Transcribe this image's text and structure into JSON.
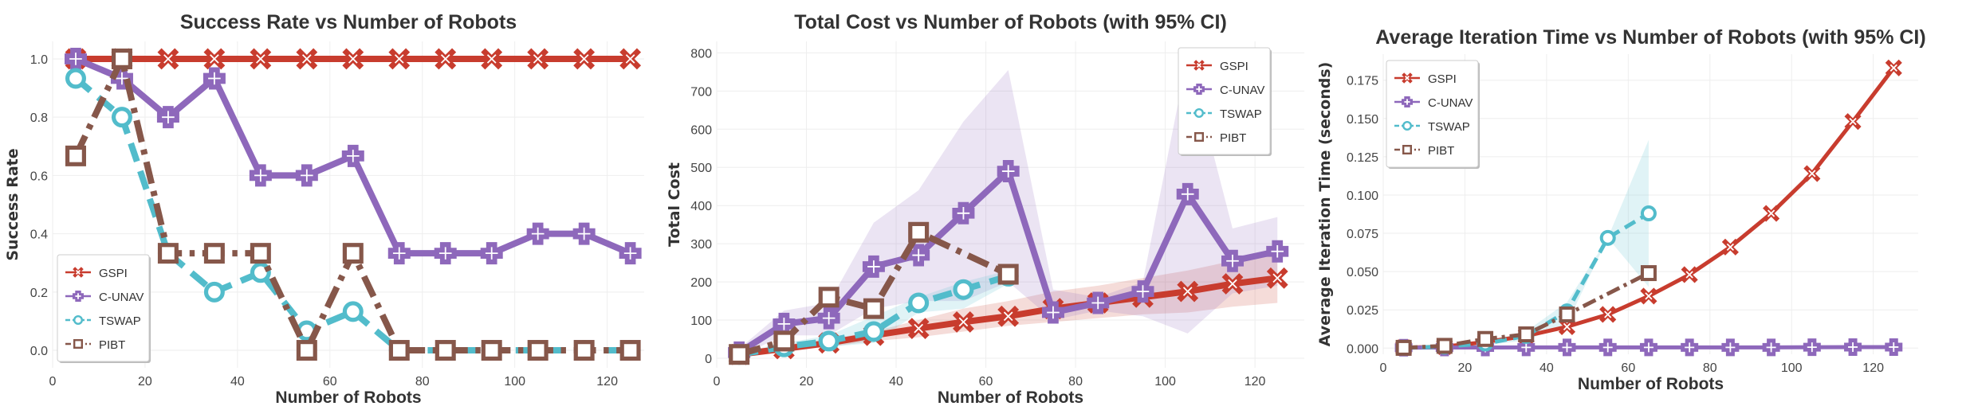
{
  "colors": {
    "GSPI": "#c83c2e",
    "C-UNAV": "#8e68bb",
    "TSWAP": "#52bccb",
    "PIBT": "#86574a"
  },
  "chart_data": [
    {
      "type": "line",
      "title": "Success Rate vs Number of Robots",
      "xlabel": "Number of Robots",
      "ylabel": "Success Rate",
      "xlim": [
        0,
        128
      ],
      "ylim": [
        -0.06,
        1.06
      ],
      "xticks": [
        0,
        20,
        40,
        60,
        80,
        100,
        120
      ],
      "yticks": [
        0.0,
        0.2,
        0.4,
        0.6,
        0.8,
        1.0
      ],
      "ytick_labels": [
        "0.0",
        "0.2",
        "0.4",
        "0.6",
        "0.8",
        "1.0"
      ],
      "grid": true,
      "legend": "lower-left",
      "series": [
        {
          "name": "GSPI",
          "marker": "x",
          "line": "solid",
          "x": [
            5,
            15,
            25,
            35,
            45,
            55,
            65,
            75,
            85,
            95,
            105,
            115,
            125
          ],
          "y": [
            1,
            1,
            1,
            1,
            1,
            1,
            1,
            1,
            1,
            1,
            1,
            1,
            1
          ]
        },
        {
          "name": "C-UNAV",
          "marker": "plus",
          "line": "solid",
          "x": [
            5,
            15,
            25,
            35,
            45,
            55,
            65,
            75,
            85,
            95,
            105,
            115,
            125
          ],
          "y": [
            1.0,
            0.933,
            0.8,
            0.933,
            0.6,
            0.6,
            0.667,
            0.333,
            0.333,
            0.333,
            0.4,
            0.4,
            0.333
          ]
        },
        {
          "name": "TSWAP",
          "marker": "circle",
          "line": "dashed",
          "x": [
            5,
            15,
            25,
            35,
            45,
            55,
            65,
            75,
            85,
            95,
            105,
            115,
            125
          ],
          "y": [
            0.933,
            0.8,
            0.333,
            0.2,
            0.267,
            0.067,
            0.133,
            0,
            0,
            0,
            0,
            0,
            0
          ]
        },
        {
          "name": "PIBT",
          "marker": "square",
          "line": "dashdot",
          "x": [
            5,
            15,
            25,
            35,
            45,
            55,
            65,
            75,
            85,
            95,
            105,
            115,
            125
          ],
          "y": [
            0.667,
            1.0,
            0.333,
            0.333,
            0.333,
            0,
            0.333,
            0,
            0,
            0,
            0,
            0,
            0
          ]
        }
      ]
    },
    {
      "type": "line",
      "title": "Total Cost vs Number of Robots (with 95% CI)",
      "xlabel": "Number of Robots",
      "ylabel": "Total Cost",
      "xlim": [
        0,
        131
      ],
      "ylim": [
        -25,
        830
      ],
      "xticks": [
        0,
        20,
        40,
        60,
        80,
        100,
        120
      ],
      "yticks": [
        0,
        100,
        200,
        300,
        400,
        500,
        600,
        700,
        800
      ],
      "ytick_labels": [
        "0",
        "100",
        "200",
        "300",
        "400",
        "500",
        "600",
        "700",
        "800"
      ],
      "grid": true,
      "legend": "upper-right",
      "series": [
        {
          "name": "GSPI",
          "marker": "x",
          "line": "solid",
          "x": [
            5,
            15,
            25,
            35,
            45,
            55,
            65,
            75,
            85,
            95,
            105,
            115,
            125
          ],
          "y": [
            10,
            25,
            40,
            60,
            78,
            95,
            110,
            130,
            145,
            160,
            175,
            195,
            210
          ],
          "ci_low": [
            5,
            18,
            30,
            45,
            55,
            70,
            85,
            95,
            105,
            115,
            120,
            135,
            145
          ],
          "ci_high": [
            15,
            35,
            50,
            70,
            100,
            130,
            150,
            175,
            190,
            210,
            230,
            255,
            275
          ]
        },
        {
          "name": "C-UNAV",
          "marker": "plus",
          "line": "solid",
          "x": [
            5,
            15,
            25,
            35,
            45,
            55,
            65,
            75,
            85,
            95,
            105,
            115,
            125
          ],
          "y": [
            15,
            90,
            105,
            240,
            270,
            380,
            490,
            120,
            145,
            175,
            430,
            255,
            280
          ],
          "ci_low": [
            5,
            60,
            60,
            130,
            150,
            150,
            200,
            100,
            125,
            110,
            65,
            170,
            190
          ],
          "ci_high": [
            25,
            125,
            145,
            355,
            440,
            620,
            755,
            180,
            160,
            200,
            795,
            340,
            370
          ]
        },
        {
          "name": "TSWAP",
          "marker": "circle",
          "line": "dashed",
          "x": [
            5,
            15,
            25,
            35,
            45,
            55,
            65
          ],
          "y": [
            10,
            30,
            45,
            70,
            145,
            180,
            215
          ],
          "ci_low": [
            5,
            22,
            30,
            40,
            120,
            130,
            195
          ],
          "ci_high": [
            15,
            40,
            60,
            110,
            160,
            200,
            230
          ]
        },
        {
          "name": "PIBT",
          "marker": "square",
          "line": "dashdot",
          "x": [
            5,
            15,
            25,
            35,
            45,
            65
          ],
          "y": [
            10,
            45,
            160,
            130,
            330,
            220
          ]
        }
      ]
    },
    {
      "type": "line",
      "title": "Average Iteration Time vs Number of Robots (with 95% CI)",
      "xlabel": "Number of Robots",
      "ylabel": "Average Iteration Time (seconds)",
      "xlim": [
        0,
        131
      ],
      "ylim": [
        -0.004,
        0.192
      ],
      "xticks": [
        0,
        20,
        40,
        60,
        80,
        100,
        120
      ],
      "yticks": [
        0,
        0.025,
        0.05,
        0.075,
        0.1,
        0.125,
        0.15,
        0.175
      ],
      "ytick_labels": [
        "0.000",
        "0.025",
        "0.050",
        "0.075",
        "0.100",
        "0.125",
        "0.150",
        "0.175"
      ],
      "grid": true,
      "legend": "upper-left",
      "series": [
        {
          "name": "GSPI",
          "marker": "x",
          "line": "solid",
          "x": [
            5,
            15,
            25,
            35,
            45,
            55,
            65,
            75,
            85,
            95,
            105,
            115,
            125
          ],
          "y": [
            0.0003,
            0.001,
            0.004,
            0.008,
            0.014,
            0.022,
            0.034,
            0.048,
            0.066,
            0.088,
            0.114,
            0.148,
            0.183
          ]
        },
        {
          "name": "C-UNAV",
          "marker": "plus",
          "line": "solid",
          "x": [
            5,
            15,
            25,
            35,
            45,
            55,
            65,
            75,
            85,
            95,
            105,
            115,
            125
          ],
          "y": [
            0.0003,
            0.0004,
            0.0004,
            0.0005,
            0.0005,
            0.0005,
            0.0005,
            0.0005,
            0.0005,
            0.0005,
            0.0006,
            0.0007,
            0.0007
          ]
        },
        {
          "name": "TSWAP",
          "marker": "circle",
          "line": "dashed",
          "x": [
            5,
            15,
            25,
            35,
            45,
            55,
            65
          ],
          "y": [
            0.0002,
            0.001,
            0.003,
            0.008,
            0.024,
            0.072,
            0.088
          ],
          "ci_low": [
            0,
            0.0005,
            0.002,
            0.005,
            0.016,
            0.072,
            0.04
          ],
          "ci_high": [
            0.0004,
            0.0015,
            0.004,
            0.011,
            0.03,
            0.072,
            0.136
          ]
        },
        {
          "name": "PIBT",
          "marker": "square",
          "line": "dashdot",
          "x": [
            5,
            15,
            25,
            35,
            45,
            65
          ],
          "y": [
            0.0002,
            0.0015,
            0.006,
            0.009,
            0.022,
            0.049
          ]
        }
      ]
    }
  ]
}
